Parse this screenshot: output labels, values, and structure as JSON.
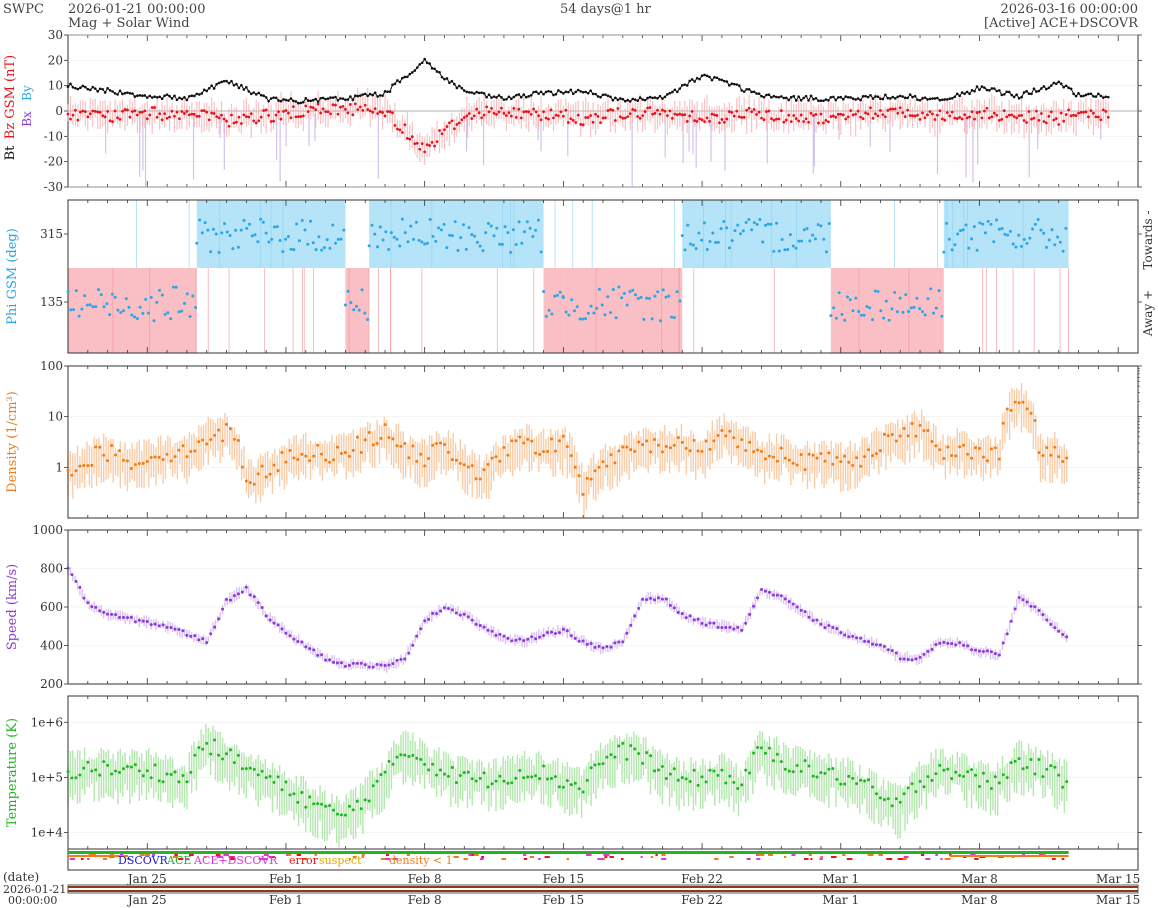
{
  "header": {
    "brand": "SWPC",
    "start": "2026-01-21 00:00:00",
    "subtitle": "Mag + Solar Wind",
    "span": "54 days@1 hr",
    "end": "2026-03-16 00:00:00",
    "source": "[Active] ACE+DSCOVR"
  },
  "colors": {
    "bt": "#111111",
    "bz": "#e8141b",
    "phi": "#29a7e6",
    "toward": "#b5e3f7",
    "away": "#f9bfc4",
    "density": "#f07d18",
    "speed": "#8c3cd6",
    "temp": "#21b521",
    "dscovr": "#1a1ad6",
    "ace": "#21b521",
    "acedscovr": "#e234e2",
    "error": "#e8141b",
    "suspect": "#e0a800",
    "density_flag": "#f07d18"
  },
  "legend": {
    "dscovr": "DSCOVR",
    "ace": "ACE",
    "acedscovr": "ACE+DSCOVR",
    "error": "error",
    "suspect": "suspect",
    "density": "density < 1"
  },
  "footer": {
    "date_label": "(date)",
    "date_value": "2026-01-21",
    "time_value": "00:00:00"
  },
  "chart_data": {
    "type": "line",
    "x_range": [
      "2026-01-21 00:00",
      "2026-03-16 00:00"
    ],
    "x_ticks": [
      "Jan 25",
      "Feb 1",
      "Feb 8",
      "Feb 15",
      "Feb 22",
      "Mar 1",
      "Mar 8",
      "Mar 15"
    ],
    "panels": [
      {
        "id": "mag",
        "ylabel_parts": [
          "Bt",
          "Bz GSM (nT)"
        ],
        "legend_glyphs": [
          "Bx",
          "By"
        ],
        "ylim": [
          -30,
          30
        ],
        "yticks": [
          30,
          20,
          10,
          0,
          -10,
          -20,
          -30
        ],
        "series": [
          {
            "key": "bt",
            "x_days": [
              0,
              2,
              4,
              6,
              8,
              10,
              11,
              12,
              14,
              16,
              18,
              19,
              20,
              21,
              22,
              24,
              26,
              28,
              30,
              32,
              33,
              34,
              35,
              36,
              38,
              40,
              42,
              44,
              46,
              48,
              50,
              51,
              52,
              52.5
            ],
            "values": [
              10,
              8,
              6,
              5,
              12,
              5,
              4,
              4,
              5,
              7,
              20,
              13,
              8,
              6,
              5,
              7,
              8,
              4,
              5,
              14,
              12,
              9,
              6,
              5,
              5,
              5,
              6,
              4,
              9,
              6,
              11,
              6,
              6,
              6
            ]
          },
          {
            "key": "bz",
            "x_days": [
              0,
              2,
              4,
              6,
              8,
              10,
              11,
              12,
              14,
              16,
              18,
              19,
              20,
              21,
              22,
              24,
              26,
              28,
              30,
              32,
              33,
              34,
              35,
              36,
              38,
              40,
              42,
              44,
              46,
              48,
              50,
              51,
              52,
              52.5
            ],
            "values": [
              -1,
              -2,
              -1,
              -1,
              -4,
              -2,
              -1,
              0,
              1,
              0,
              -15,
              -8,
              -2,
              0,
              -1,
              -1,
              -3,
              -1,
              -1,
              -2,
              -3,
              -1,
              -1,
              -2,
              -3,
              -1,
              0,
              -2,
              -1,
              -2,
              -3,
              -1,
              -2,
              -1
            ]
          }
        ]
      },
      {
        "id": "phi",
        "ylabel": "Phi GSM (deg)",
        "right_labels": [
          "Towards -",
          "Away +"
        ],
        "ylim": [
          0,
          405
        ],
        "yticks": [
          315,
          135
        ],
        "sectors": [
          {
            "start": 0,
            "end": 6.5,
            "sign": "away"
          },
          {
            "start": 6.5,
            "end": 14,
            "sign": "towards"
          },
          {
            "start": 14,
            "end": 15.2,
            "sign": "away"
          },
          {
            "start": 15.2,
            "end": 24,
            "sign": "towards"
          },
          {
            "start": 24,
            "end": 25,
            "sign": "away"
          },
          {
            "start": 25,
            "end": 31,
            "sign": "away"
          },
          {
            "start": 31,
            "end": 38.5,
            "sign": "towards"
          },
          {
            "start": 38.5,
            "end": 44.2,
            "sign": "away"
          },
          {
            "start": 44.2,
            "end": 50.5,
            "sign": "towards"
          }
        ]
      },
      {
        "id": "density",
        "ylabel": "Density (1/cm³)",
        "scale": "log",
        "ylim": [
          0.1,
          100
        ],
        "yticks": [
          "100",
          "10",
          "1"
        ],
        "series": [
          {
            "key": "density",
            "x_days": [
              0,
              1,
              2,
              3,
              4,
              5,
              6,
              7,
              8,
              9,
              10,
              11,
              12,
              13,
              14,
              15,
              16,
              17,
              18,
              19,
              20,
              21,
              22,
              23,
              24,
              25,
              26,
              27,
              28,
              29,
              30,
              31,
              32,
              33,
              34,
              35,
              36,
              37,
              38,
              39,
              40,
              41,
              42,
              43,
              44,
              45,
              46,
              47,
              48,
              49,
              50,
              50.5
            ],
            "values": [
              0.8,
              1.5,
              2,
              1.3,
              1.5,
              2,
              1.8,
              4,
              5,
              0.6,
              0.8,
              1.5,
              2,
              1.8,
              2.2,
              3,
              5,
              2,
              1.5,
              2.5,
              1.2,
              0.6,
              2,
              3,
              2.5,
              2.8,
              0.3,
              1.2,
              1.8,
              2.5,
              3,
              3,
              2,
              5,
              3,
              1.8,
              2,
              1.3,
              1.4,
              1.3,
              1.5,
              3,
              4,
              6,
              2,
              2.5,
              2,
              1.8,
              22,
              2,
              2,
              1.5
            ]
          }
        ]
      },
      {
        "id": "speed",
        "ylabel": "Speed (km/s)",
        "ylim": [
          200,
          1000
        ],
        "yticks": [
          1000,
          800,
          600,
          400,
          200
        ],
        "series": [
          {
            "key": "speed",
            "x_days": [
              0,
              1,
              2,
              3,
              4,
              5,
              6,
              7,
              8,
              9,
              10,
              11,
              12,
              13,
              14,
              15,
              16,
              17,
              18,
              19,
              20,
              21,
              22,
              23,
              24,
              25,
              26,
              27,
              28,
              29,
              30,
              31,
              32,
              33,
              34,
              35,
              36,
              37,
              38,
              39,
              40,
              41,
              42,
              43,
              44,
              45,
              46,
              47,
              48,
              49,
              50,
              50.5
            ],
            "values": [
              800,
              620,
              560,
              540,
              520,
              500,
              460,
              420,
              630,
              700,
              560,
              470,
              400,
              330,
              300,
              300,
              290,
              330,
              530,
              600,
              560,
              490,
              440,
              420,
              460,
              480,
              420,
              380,
              420,
              640,
              650,
              560,
              520,
              500,
              480,
              690,
              650,
              580,
              510,
              470,
              430,
              400,
              340,
              330,
              420,
              410,
              370,
              350,
              650,
              580,
              480,
              440
            ]
          }
        ]
      },
      {
        "id": "temp",
        "ylabel": "Temperature (K)",
        "scale": "log",
        "ylim": [
          5000,
          3000000
        ],
        "yticks": [
          "1e+6",
          "1e+5",
          "1e+4"
        ],
        "series": [
          {
            "key": "temp",
            "x_days": [
              0,
              1,
              2,
              3,
              4,
              5,
              6,
              7,
              8,
              9,
              10,
              11,
              12,
              13,
              14,
              15,
              16,
              17,
              18,
              19,
              20,
              21,
              22,
              23,
              24,
              25,
              26,
              27,
              28,
              29,
              30,
              31,
              32,
              33,
              34,
              35,
              36,
              37,
              38,
              39,
              40,
              41,
              42,
              43,
              44,
              45,
              46,
              47,
              48,
              49,
              50,
              50.5
            ],
            "values": [
              120000,
              150000,
              140000,
              130000,
              140000,
              110000,
              90000,
              400000,
              250000,
              150000,
              100000,
              60000,
              40000,
              25000,
              20000,
              40000,
              100000,
              300000,
              200000,
              120000,
              100000,
              90000,
              100000,
              130000,
              120000,
              80000,
              70000,
              200000,
              300000,
              250000,
              120000,
              90000,
              100000,
              120000,
              60000,
              300000,
              200000,
              150000,
              120000,
              100000,
              80000,
              40000,
              30000,
              80000,
              150000,
              120000,
              90000,
              80000,
              200000,
              150000,
              100000,
              80000
            ]
          }
        ]
      }
    ]
  }
}
